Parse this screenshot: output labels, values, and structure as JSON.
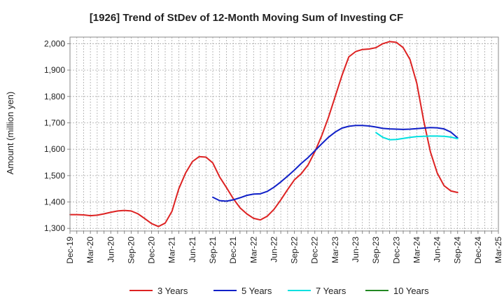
{
  "chart_data": {
    "type": "line",
    "title": "[1926]  Trend of StDev of 12-Month Moving Sum of Investing CF",
    "ylabel": "Amount (million yen)",
    "xlabel": "",
    "ylim": [
      1290,
      2025
    ],
    "yticks": [
      1300,
      1400,
      1500,
      1600,
      1700,
      1800,
      1900,
      2000
    ],
    "ytick_labels": [
      "1,300",
      "1,400",
      "1,500",
      "1,600",
      "1,700",
      "1,800",
      "1,900",
      "2,000"
    ],
    "x_start": "2019-12",
    "x_end": "2025-03",
    "x_ticks": [
      "Dec-19",
      "Mar-20",
      "Jun-20",
      "Sep-20",
      "Dec-20",
      "Mar-21",
      "Jun-21",
      "Sep-21",
      "Dec-21",
      "Mar-22",
      "Jun-22",
      "Sep-22",
      "Dec-22",
      "Mar-23",
      "Jun-23",
      "Sep-23",
      "Dec-23",
      "Mar-24",
      "Jun-24",
      "Sep-24",
      "Dec-24",
      "Mar-25"
    ],
    "grid": true,
    "legend_position": "bottom",
    "series": [
      {
        "name": "3 Years",
        "color": "#dd2222",
        "x": [
          "2019-12",
          "2020-01",
          "2020-02",
          "2020-03",
          "2020-04",
          "2020-05",
          "2020-06",
          "2020-07",
          "2020-08",
          "2020-09",
          "2020-10",
          "2020-11",
          "2020-12",
          "2021-01",
          "2021-02",
          "2021-03",
          "2021-04",
          "2021-05",
          "2021-06",
          "2021-07",
          "2021-08",
          "2021-09",
          "2021-10",
          "2021-11",
          "2021-12",
          "2022-01",
          "2022-02",
          "2022-03",
          "2022-04",
          "2022-05",
          "2022-06",
          "2022-07",
          "2022-08",
          "2022-09",
          "2022-10",
          "2022-11",
          "2022-12",
          "2023-01",
          "2023-02",
          "2023-03",
          "2023-04",
          "2023-05",
          "2023-06",
          "2023-07",
          "2023-08",
          "2023-09",
          "2023-10",
          "2023-11",
          "2023-12",
          "2024-01",
          "2024-02",
          "2024-03",
          "2024-04",
          "2024-05",
          "2024-06",
          "2024-07",
          "2024-08",
          "2024-09"
        ],
        "values": [
          1352,
          1352,
          1351,
          1348,
          1350,
          1355,
          1361,
          1366,
          1368,
          1366,
          1355,
          1337,
          1318,
          1307,
          1320,
          1365,
          1450,
          1510,
          1553,
          1572,
          1570,
          1548,
          1495,
          1455,
          1413,
          1378,
          1355,
          1338,
          1332,
          1346,
          1372,
          1408,
          1447,
          1484,
          1507,
          1540,
          1590,
          1650,
          1720,
          1800,
          1880,
          1950,
          1970,
          1978,
          1980,
          1985,
          2000,
          2008,
          2005,
          1985,
          1940,
          1850,
          1710,
          1590,
          1510,
          1462,
          1442,
          1436
        ]
      },
      {
        "name": "5 Years",
        "color": "#1020c8",
        "x": [
          "2021-09",
          "2021-10",
          "2021-11",
          "2021-12",
          "2022-01",
          "2022-02",
          "2022-03",
          "2022-04",
          "2022-05",
          "2022-06",
          "2022-07",
          "2022-08",
          "2022-09",
          "2022-10",
          "2022-11",
          "2022-12",
          "2023-01",
          "2023-02",
          "2023-03",
          "2023-04",
          "2023-05",
          "2023-06",
          "2023-07",
          "2023-08",
          "2023-09",
          "2023-10",
          "2023-11",
          "2023-12",
          "2024-01",
          "2024-02",
          "2024-03",
          "2024-04",
          "2024-05",
          "2024-06",
          "2024-07",
          "2024-08",
          "2024-09"
        ],
        "values": [
          1418,
          1405,
          1403,
          1408,
          1416,
          1425,
          1430,
          1431,
          1440,
          1456,
          1476,
          1498,
          1521,
          1546,
          1568,
          1594,
          1620,
          1645,
          1665,
          1680,
          1687,
          1690,
          1690,
          1688,
          1684,
          1679,
          1677,
          1676,
          1675,
          1676,
          1678,
          1680,
          1682,
          1681,
          1677,
          1665,
          1643
        ]
      },
      {
        "name": "7 Years",
        "color": "#00e0e0",
        "x": [
          "2023-09",
          "2023-10",
          "2023-11",
          "2023-12",
          "2024-01",
          "2024-02",
          "2024-03",
          "2024-04",
          "2024-05",
          "2024-06",
          "2024-07",
          "2024-08",
          "2024-09"
        ],
        "values": [
          1663,
          1645,
          1636,
          1637,
          1641,
          1645,
          1648,
          1649,
          1650,
          1650,
          1649,
          1646,
          1640
        ]
      },
      {
        "name": "10 Years",
        "color": "#228822",
        "x": [],
        "values": []
      }
    ]
  }
}
